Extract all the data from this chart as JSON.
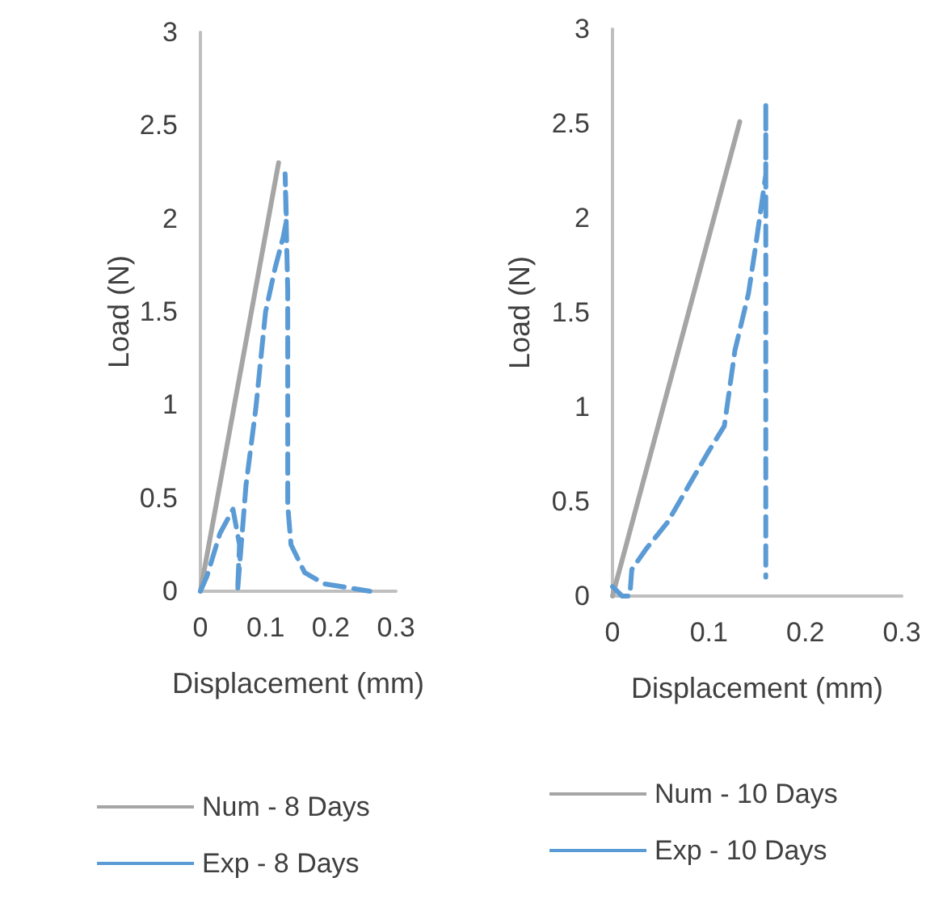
{
  "chart_data": [
    {
      "type": "line",
      "xlabel": "Displacement (mm)",
      "ylabel": "Load (N)",
      "xlim": [
        0,
        0.3
      ],
      "xticks": [
        0,
        0.1,
        0.2,
        0.3
      ],
      "ylim": [
        0,
        3
      ],
      "yticks": [
        0,
        0.5,
        1,
        1.5,
        2,
        2.5,
        3
      ],
      "grid": false,
      "legend": "bottom",
      "marker": "none",
      "series": [
        {
          "name": "Num - 8 Days",
          "color": "#a5a5a5",
          "line_style": "solid",
          "x": [
            0,
            0.12
          ],
          "values": [
            0,
            2.3
          ]
        },
        {
          "name": "Exp - 8 Days",
          "color": "#5b9bd5",
          "line_style": "dashed",
          "x": [
            0,
            0.01,
            0.03,
            0.05,
            0.06,
            0.057,
            0.07,
            0.085,
            0.1,
            0.115,
            0.127,
            0.132,
            0.13,
            0.134,
            0.134,
            0.139,
            0.16,
            0.19,
            0.26
          ],
          "values": [
            0,
            0.08,
            0.31,
            0.44,
            0.25,
            0,
            0.57,
            0.98,
            1.5,
            1.74,
            1.9,
            1.99,
            2.24,
            1.61,
            0.46,
            0.25,
            0.1,
            0.04,
            0
          ]
        }
      ]
    },
    {
      "type": "line",
      "xlabel": "Displacement (mm)",
      "ylabel": "Load (N)",
      "xlim": [
        0,
        0.3
      ],
      "xticks": [
        0,
        0.1,
        0.2,
        0.3
      ],
      "ylim": [
        0,
        3
      ],
      "yticks": [
        0,
        0.5,
        1,
        1.5,
        2,
        2.5,
        3
      ],
      "grid": false,
      "legend": "bottom",
      "marker": "none",
      "series": [
        {
          "name": "Num - 10 Days",
          "color": "#a5a5a5",
          "line_style": "solid",
          "x": [
            0,
            0.132
          ],
          "values": [
            0,
            2.51
          ]
        },
        {
          "name": "Exp - 10 Days",
          "color": "#5b9bd5",
          "line_style": "dashed",
          "x": [
            0,
            0.01,
            0.018,
            0.02,
            0.035,
            0.057,
            0.099,
            0.116,
            0.127,
            0.141,
            0.149,
            0.152,
            0.159,
            0.159,
            0.159
          ],
          "values": [
            0.05,
            0,
            0,
            0.14,
            0.25,
            0.39,
            0.76,
            0.9,
            1.3,
            1.6,
            1.87,
            1.98,
            2.23,
            2.61,
            0.1
          ]
        }
      ]
    }
  ]
}
